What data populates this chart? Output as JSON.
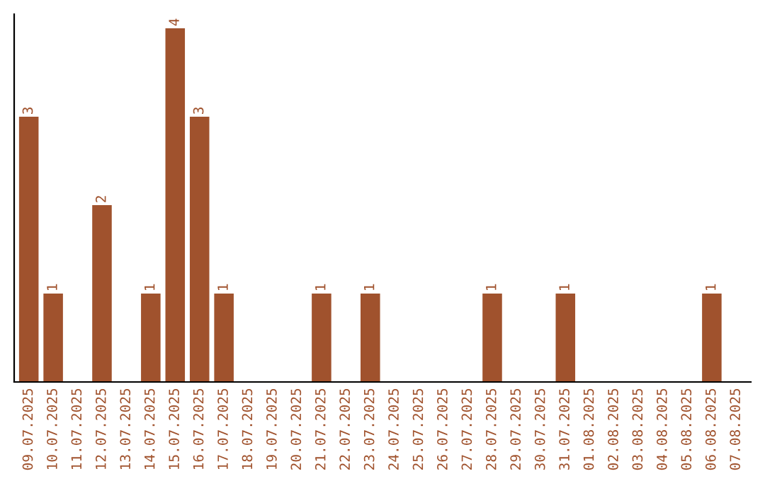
{
  "chart_data": {
    "type": "bar",
    "categories": [
      "09.07.2025",
      "10.07.2025",
      "11.07.2025",
      "12.07.2025",
      "13.07.2025",
      "14.07.2025",
      "15.07.2025",
      "16.07.2025",
      "17.07.2025",
      "18.07.2025",
      "19.07.2025",
      "20.07.2025",
      "21.07.2025",
      "22.07.2025",
      "23.07.2025",
      "24.07.2025",
      "25.07.2025",
      "26.07.2025",
      "27.07.2025",
      "28.07.2025",
      "29.07.2025",
      "30.07.2025",
      "31.07.2025",
      "01.08.2025",
      "02.08.2025",
      "03.08.2025",
      "04.08.2025",
      "05.08.2025",
      "06.08.2025",
      "07.08.2025"
    ],
    "values": [
      3,
      1,
      0,
      2,
      0,
      1,
      4,
      3,
      1,
      0,
      0,
      0,
      1,
      0,
      1,
      0,
      0,
      0,
      0,
      1,
      0,
      0,
      1,
      0,
      0,
      0,
      0,
      0,
      1,
      0
    ],
    "value_labels": [
      "3",
      "1",
      null,
      "2",
      null,
      "1",
      "4",
      "3",
      "1",
      null,
      null,
      null,
      "1",
      null,
      "1",
      null,
      null,
      null,
      null,
      "1",
      null,
      null,
      "1",
      null,
      null,
      null,
      null,
      null,
      "1",
      null
    ],
    "color": "#a0522d",
    "grid": false,
    "legend": false
  }
}
